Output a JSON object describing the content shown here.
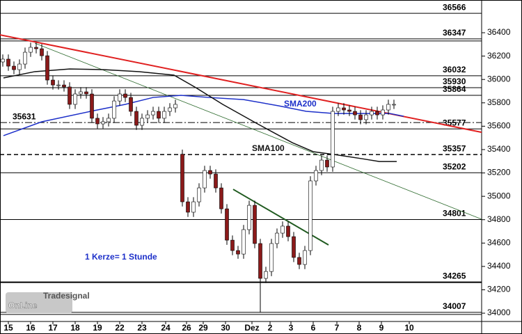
{
  "chart_data": {
    "type": "candlestick",
    "xlim": [
      0,
      173
    ],
    "ylim": [
      33929,
      36680
    ],
    "yticks": [
      34000,
      34200,
      34400,
      34600,
      34800,
      35000,
      35200,
      35400,
      35600,
      35800,
      36000,
      36200,
      36400
    ],
    "xticks": [
      {
        "value": 3,
        "label": "15"
      },
      {
        "value": 11,
        "label": "16"
      },
      {
        "value": 19,
        "label": "17"
      },
      {
        "value": 27,
        "label": "18"
      },
      {
        "value": 35,
        "label": "19"
      },
      {
        "value": 43,
        "label": "22"
      },
      {
        "value": 51,
        "label": "23"
      },
      {
        "value": 59.5,
        "label": "24"
      },
      {
        "value": 67,
        "label": "26"
      },
      {
        "value": 73,
        "label": "29"
      },
      {
        "value": 81,
        "label": "30"
      },
      {
        "value": 90.5,
        "label": "Dez"
      },
      {
        "value": 97,
        "label": "2"
      },
      {
        "value": 104.5,
        "label": "3"
      },
      {
        "value": 112.5,
        "label": "6"
      },
      {
        "value": 121,
        "label": "7"
      },
      {
        "value": 129,
        "label": "8"
      },
      {
        "value": 137,
        "label": "9"
      },
      {
        "value": 147,
        "label": "10"
      }
    ],
    "up_color": "#ffffff",
    "down_color": "#8b1a1a",
    "candles": {
      "x": [
        1,
        3,
        5,
        7,
        9,
        11,
        13,
        15,
        17,
        19,
        21,
        23,
        25,
        27,
        29,
        31,
        33,
        35,
        37,
        39,
        41,
        43,
        45,
        47,
        49,
        51,
        53,
        55,
        57,
        59,
        61,
        63,
        65.5,
        67.5,
        69.5,
        71.5,
        73.5,
        75.5,
        77.5,
        79.5,
        81.5,
        83.5,
        85.5,
        87.5,
        89.5,
        91.5,
        93.5,
        95.5,
        97.5,
        99.5,
        101.5,
        103.5,
        105.5,
        107.5,
        109.5,
        111.5,
        113.5,
        115.5,
        117.5,
        119.5,
        121.5,
        123.5,
        125.5,
        127.5,
        129.5,
        131.5,
        133.5,
        135.5,
        137.5,
        139.5,
        141.5
      ],
      "open": [
        36150,
        36174,
        36114,
        36084,
        36132,
        36233,
        36275,
        36263,
        36203,
        35995,
        35953,
        35953,
        35936,
        35787,
        35876,
        35894,
        35876,
        35668,
        35620,
        35638,
        35668,
        35816,
        35876,
        35846,
        35727,
        35608,
        35668,
        35697,
        35727,
        35668,
        35727,
        35757,
        35360,
        34953,
        34864,
        34953,
        35072,
        35221,
        35191,
        35072,
        34893,
        34625,
        34536,
        34506,
        34715,
        34923,
        34596,
        34298,
        34357,
        34596,
        34685,
        34745,
        34655,
        34477,
        34417,
        34536,
        35132,
        35221,
        35310,
        35251,
        35727,
        35757,
        35739,
        35727,
        35697,
        35656,
        35697,
        35727,
        35697,
        35739,
        35787
      ],
      "high": [
        36214,
        36214,
        36154,
        36172,
        36273,
        36315,
        36315,
        36303,
        36243,
        36035,
        35993,
        35993,
        35976,
        35916,
        35934,
        35934,
        35916,
        35708,
        35678,
        35708,
        35856,
        35916,
        35916,
        35886,
        35767,
        35708,
        35737,
        35767,
        35767,
        35767,
        35797,
        35827,
        35400,
        34993,
        34993,
        35112,
        35261,
        35261,
        35231,
        35112,
        34933,
        34665,
        34576,
        34755,
        34963,
        34963,
        34636,
        34397,
        34636,
        34725,
        34785,
        34785,
        34695,
        34517,
        34576,
        35172,
        35261,
        35350,
        35350,
        35767,
        35797,
        35797,
        35779,
        35767,
        35737,
        35737,
        35767,
        35767,
        35779,
        35827,
        35827
      ],
      "low": [
        36110,
        36074,
        36044,
        36044,
        36092,
        36193,
        36223,
        36163,
        35955,
        35913,
        35913,
        35896,
        35747,
        35747,
        35836,
        35836,
        35628,
        35580,
        35580,
        35598,
        35628,
        35776,
        35806,
        35687,
        35568,
        35568,
        35628,
        35657,
        35628,
        35628,
        35687,
        35717,
        34913,
        34824,
        34824,
        34913,
        35032,
        35151,
        35032,
        34853,
        34585,
        34496,
        34466,
        34466,
        34675,
        34556,
        34007,
        34258,
        34317,
        34556,
        34645,
        34615,
        34437,
        34377,
        34377,
        34496,
        35092,
        35181,
        35211,
        35211,
        35687,
        35699,
        35687,
        35657,
        35616,
        35616,
        35657,
        35657,
        35657,
        35699,
        35747
      ],
      "close": [
        36174,
        36114,
        36084,
        36132,
        36233,
        36275,
        36263,
        36203,
        35995,
        35953,
        35953,
        35936,
        35787,
        35876,
        35894,
        35876,
        35668,
        35620,
        35638,
        35668,
        35816,
        35876,
        35846,
        35727,
        35608,
        35668,
        35697,
        35727,
        35668,
        35727,
        35757,
        35787,
        34953,
        34864,
        34953,
        35072,
        35221,
        35191,
        35072,
        34893,
        34625,
        34536,
        34506,
        34715,
        34923,
        34596,
        34298,
        34357,
        34596,
        34685,
        34745,
        34655,
        34477,
        34417,
        34536,
        35132,
        35221,
        35310,
        35251,
        35727,
        35757,
        35739,
        35727,
        35697,
        35656,
        35697,
        35727,
        35697,
        35739,
        35787,
        35787
      ]
    },
    "series": [
      {
        "name": "SMA200",
        "color": "#1c2fc9",
        "x": [
          1.25,
          15,
          32.5,
          45,
          55,
          65,
          75,
          87.5,
          100,
          110,
          120,
          130,
          140,
          145
        ],
        "values": [
          35519,
          35638,
          35727,
          35787,
          35846,
          35864,
          35846,
          35828,
          35775,
          35727,
          35709,
          35709,
          35709,
          35685
        ]
      },
      {
        "name": "SMA100",
        "color": "#111111",
        "x": [
          1.25,
          12.5,
          25,
          37.5,
          50,
          62.5,
          70,
          80,
          92.5,
          105,
          112.5,
          120,
          130,
          136.25,
          142.5
        ],
        "values": [
          36013,
          36067,
          36090,
          36084,
          36067,
          36037,
          35935,
          35787,
          35620,
          35459,
          35382,
          35358,
          35322,
          35298,
          35298
        ]
      }
    ],
    "trendlines": [
      {
        "color": "#e02020",
        "x": [
          0,
          173
        ],
        "values": [
          36382,
          35548
        ]
      },
      {
        "color": "#2e6b2e",
        "x": [
          12.5,
          173
        ],
        "values": [
          36311,
          34804
        ]
      },
      {
        "color": "#1f5a1f",
        "x": [
          83.75,
          118
        ],
        "values": [
          35060,
          34584
        ]
      }
    ],
    "levels": [
      {
        "value": 36566,
        "style": "solid",
        "side": "right"
      },
      {
        "value": 36347,
        "style": "double",
        "side": "right"
      },
      {
        "value": 36032,
        "style": "solid",
        "side": "right"
      },
      {
        "value": 35930,
        "style": "solid",
        "side": "right"
      },
      {
        "value": 35864,
        "style": "solid",
        "side": "right"
      },
      {
        "value": 35631,
        "style": "dashdot",
        "side": "left"
      },
      {
        "value": 35577,
        "style": "solid",
        "side": "right"
      },
      {
        "value": 35357,
        "style": "dashed",
        "side": "right"
      },
      {
        "value": 35202,
        "style": "solid",
        "side": "right"
      },
      {
        "value": 34801,
        "style": "solid",
        "side": "right"
      },
      {
        "value": 34265,
        "style": "thick",
        "side": "right"
      },
      {
        "value": 34007,
        "style": "double",
        "side": "right"
      }
    ],
    "note": "1 Kerze= 1 Stunde",
    "logo": {
      "brand": "Tradesignal",
      "name": "OnLine"
    }
  }
}
